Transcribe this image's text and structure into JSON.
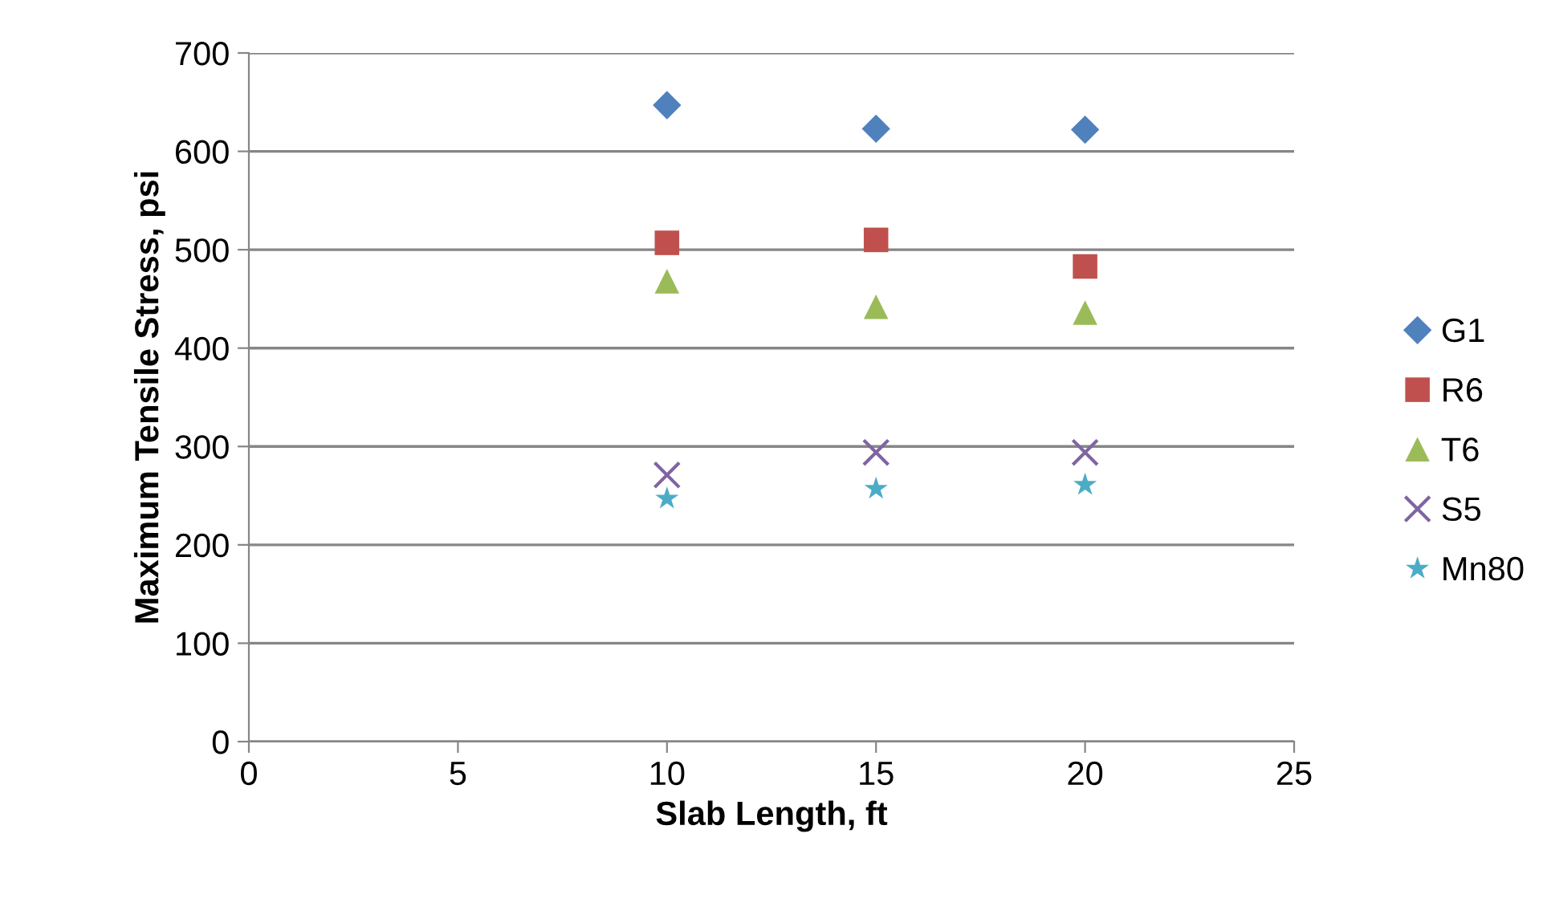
{
  "chart_data": {
    "type": "scatter",
    "xlabel": "Slab Length, ft",
    "ylabel": "Maximum Tensile Stress, psi",
    "x": [
      10,
      15,
      20
    ],
    "series": [
      {
        "name": "G1",
        "color": "#4f81bd",
        "marker": "diamond",
        "values": [
          647,
          623,
          622
        ]
      },
      {
        "name": "R6",
        "color": "#c0504d",
        "marker": "square",
        "values": [
          507,
          510,
          483
        ]
      },
      {
        "name": "T6",
        "color": "#9bbb59",
        "marker": "triangle",
        "values": [
          468,
          442,
          436
        ]
      },
      {
        "name": "S5",
        "color": "#8064a2",
        "marker": "cross",
        "values": [
          271,
          294,
          294
        ]
      },
      {
        "name": "Mn80",
        "color": "#4bacc6",
        "marker": "star",
        "values": [
          247,
          257,
          261
        ]
      }
    ],
    "xlim": [
      0,
      25
    ],
    "xticks": [
      0,
      5,
      10,
      15,
      20,
      25
    ],
    "ylim": [
      0,
      700
    ],
    "yticks": [
      0,
      100,
      200,
      300,
      400,
      500,
      600,
      700
    ],
    "grid": "y",
    "legend": "right"
  }
}
